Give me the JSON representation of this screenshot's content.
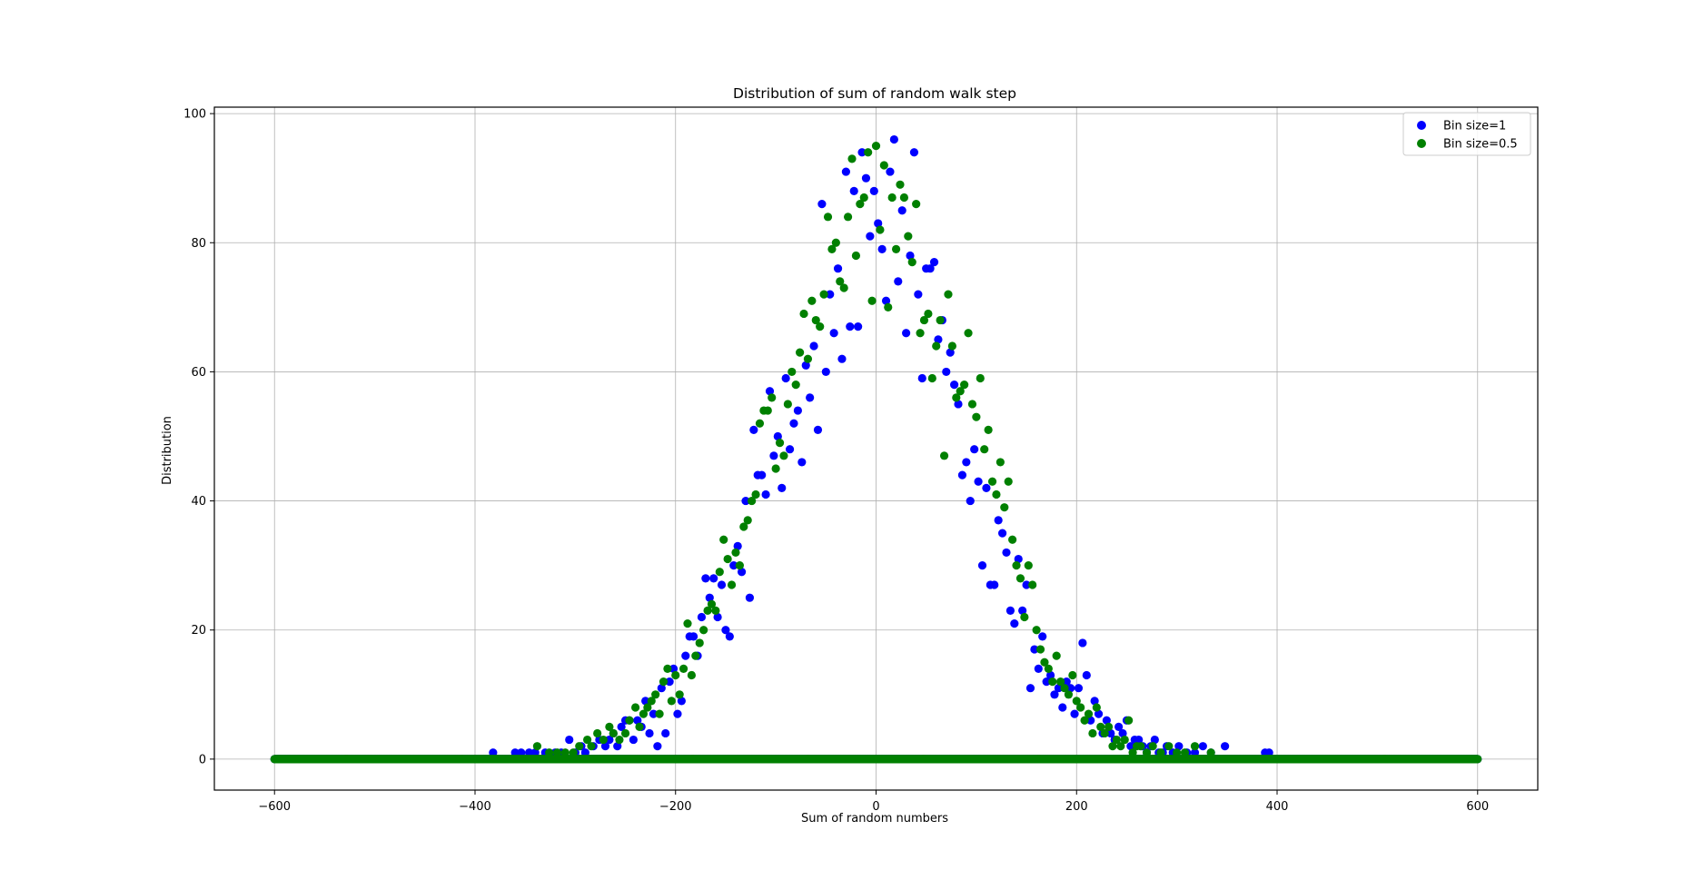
{
  "chart_data": {
    "type": "scatter",
    "title": "Distribution of sum of random walk step",
    "xlabel": "Sum of random numbers",
    "ylabel": "Distribution",
    "xlim": [
      -660,
      660
    ],
    "ylim": [
      -4.8,
      101
    ],
    "xticks": [
      -600,
      -400,
      -200,
      0,
      200,
      400,
      600
    ],
    "yticks": [
      0,
      20,
      40,
      60,
      80,
      100
    ],
    "grid": true,
    "legend_position": "top-right",
    "series": [
      {
        "name": "Bin size=1",
        "color": "#0000ff",
        "zero_baseline_range": [
          -600,
          600
        ],
        "points": [
          [
            -382,
            1
          ],
          [
            -360,
            1
          ],
          [
            -354,
            1
          ],
          [
            -346,
            1
          ],
          [
            -340,
            1
          ],
          [
            -330,
            1
          ],
          [
            -320,
            1
          ],
          [
            -314,
            1
          ],
          [
            -306,
            3
          ],
          [
            -300,
            1
          ],
          [
            -294,
            2
          ],
          [
            -290,
            1
          ],
          [
            -282,
            2
          ],
          [
            -276,
            3
          ],
          [
            -270,
            2
          ],
          [
            -266,
            3
          ],
          [
            -262,
            4
          ],
          [
            -258,
            2
          ],
          [
            -254,
            5
          ],
          [
            -250,
            6
          ],
          [
            -246,
            6
          ],
          [
            -242,
            3
          ],
          [
            -238,
            6
          ],
          [
            -234,
            5
          ],
          [
            -230,
            9
          ],
          [
            -226,
            4
          ],
          [
            -222,
            7
          ],
          [
            -218,
            2
          ],
          [
            -214,
            11
          ],
          [
            -210,
            4
          ],
          [
            -206,
            12
          ],
          [
            -202,
            14
          ],
          [
            -198,
            7
          ],
          [
            -194,
            9
          ],
          [
            -190,
            16
          ],
          [
            -186,
            19
          ],
          [
            -182,
            19
          ],
          [
            -178,
            16
          ],
          [
            -174,
            22
          ],
          [
            -170,
            28
          ],
          [
            -166,
            25
          ],
          [
            -162,
            28
          ],
          [
            -158,
            22
          ],
          [
            -154,
            27
          ],
          [
            -150,
            20
          ],
          [
            -146,
            19
          ],
          [
            -142,
            30
          ],
          [
            -138,
            33
          ],
          [
            -134,
            29
          ],
          [
            -130,
            40
          ],
          [
            -126,
            25
          ],
          [
            -122,
            51
          ],
          [
            -118,
            44
          ],
          [
            -114,
            44
          ],
          [
            -110,
            41
          ],
          [
            -106,
            57
          ],
          [
            -102,
            47
          ],
          [
            -98,
            50
          ],
          [
            -94,
            42
          ],
          [
            -90,
            59
          ],
          [
            -86,
            48
          ],
          [
            -82,
            52
          ],
          [
            -78,
            54
          ],
          [
            -74,
            46
          ],
          [
            -70,
            61
          ],
          [
            -66,
            56
          ],
          [
            -62,
            64
          ],
          [
            -58,
            51
          ],
          [
            -54,
            86
          ],
          [
            -50,
            60
          ],
          [
            -46,
            72
          ],
          [
            -42,
            66
          ],
          [
            -38,
            76
          ],
          [
            -34,
            62
          ],
          [
            -30,
            91
          ],
          [
            -26,
            67
          ],
          [
            -22,
            88
          ],
          [
            -18,
            67
          ],
          [
            -14,
            94
          ],
          [
            -10,
            90
          ],
          [
            -6,
            81
          ],
          [
            -2,
            88
          ],
          [
            2,
            83
          ],
          [
            6,
            79
          ],
          [
            10,
            71
          ],
          [
            14,
            91
          ],
          [
            18,
            96
          ],
          [
            22,
            74
          ],
          [
            26,
            85
          ],
          [
            30,
            66
          ],
          [
            34,
            78
          ],
          [
            38,
            94
          ],
          [
            42,
            72
          ],
          [
            46,
            59
          ],
          [
            50,
            76
          ],
          [
            54,
            76
          ],
          [
            58,
            77
          ],
          [
            62,
            65
          ],
          [
            66,
            68
          ],
          [
            70,
            60
          ],
          [
            74,
            63
          ],
          [
            78,
            58
          ],
          [
            82,
            55
          ],
          [
            86,
            44
          ],
          [
            90,
            46
          ],
          [
            94,
            40
          ],
          [
            98,
            48
          ],
          [
            102,
            43
          ],
          [
            106,
            30
          ],
          [
            110,
            42
          ],
          [
            114,
            27
          ],
          [
            118,
            27
          ],
          [
            122,
            37
          ],
          [
            126,
            35
          ],
          [
            130,
            32
          ],
          [
            134,
            23
          ],
          [
            138,
            21
          ],
          [
            142,
            31
          ],
          [
            146,
            23
          ],
          [
            150,
            27
          ],
          [
            154,
            11
          ],
          [
            158,
            17
          ],
          [
            162,
            14
          ],
          [
            166,
            19
          ],
          [
            170,
            12
          ],
          [
            174,
            13
          ],
          [
            178,
            10
          ],
          [
            182,
            11
          ],
          [
            186,
            8
          ],
          [
            190,
            12
          ],
          [
            194,
            11
          ],
          [
            198,
            7
          ],
          [
            202,
            11
          ],
          [
            206,
            18
          ],
          [
            210,
            13
          ],
          [
            214,
            6
          ],
          [
            218,
            9
          ],
          [
            222,
            7
          ],
          [
            226,
            4
          ],
          [
            230,
            6
          ],
          [
            234,
            4
          ],
          [
            238,
            3
          ],
          [
            242,
            5
          ],
          [
            246,
            4
          ],
          [
            250,
            6
          ],
          [
            254,
            2
          ],
          [
            258,
            3
          ],
          [
            262,
            3
          ],
          [
            266,
            2
          ],
          [
            270,
            1
          ],
          [
            274,
            2
          ],
          [
            278,
            3
          ],
          [
            282,
            1
          ],
          [
            286,
            1
          ],
          [
            290,
            2
          ],
          [
            296,
            1
          ],
          [
            302,
            2
          ],
          [
            310,
            1
          ],
          [
            318,
            1
          ],
          [
            326,
            2
          ],
          [
            334,
            1
          ],
          [
            348,
            2
          ],
          [
            388,
            1
          ],
          [
            392,
            1
          ]
        ]
      },
      {
        "name": "Bin size=0.5",
        "color": "#008000",
        "zero_baseline_range": [
          -600,
          600
        ],
        "points": [
          [
            -338,
            2
          ],
          [
            -326,
            1
          ],
          [
            -318,
            1
          ],
          [
            -310,
            1
          ],
          [
            -302,
            1
          ],
          [
            -296,
            2
          ],
          [
            -288,
            3
          ],
          [
            -284,
            2
          ],
          [
            -278,
            4
          ],
          [
            -272,
            3
          ],
          [
            -266,
            5
          ],
          [
            -262,
            4
          ],
          [
            -256,
            3
          ],
          [
            -250,
            4
          ],
          [
            -246,
            6
          ],
          [
            -240,
            8
          ],
          [
            -236,
            5
          ],
          [
            -232,
            7
          ],
          [
            -228,
            8
          ],
          [
            -224,
            9
          ],
          [
            -220,
            10
          ],
          [
            -216,
            7
          ],
          [
            -212,
            12
          ],
          [
            -208,
            14
          ],
          [
            -204,
            9
          ],
          [
            -200,
            13
          ],
          [
            -196,
            10
          ],
          [
            -192,
            14
          ],
          [
            -188,
            21
          ],
          [
            -184,
            13
          ],
          [
            -180,
            16
          ],
          [
            -176,
            18
          ],
          [
            -172,
            20
          ],
          [
            -168,
            23
          ],
          [
            -164,
            24
          ],
          [
            -160,
            23
          ],
          [
            -156,
            29
          ],
          [
            -152,
            34
          ],
          [
            -148,
            31
          ],
          [
            -144,
            27
          ],
          [
            -140,
            32
          ],
          [
            -136,
            30
          ],
          [
            -132,
            36
          ],
          [
            -128,
            37
          ],
          [
            -124,
            40
          ],
          [
            -120,
            41
          ],
          [
            -116,
            52
          ],
          [
            -112,
            54
          ],
          [
            -108,
            54
          ],
          [
            -104,
            56
          ],
          [
            -100,
            45
          ],
          [
            -96,
            49
          ],
          [
            -92,
            47
          ],
          [
            -88,
            55
          ],
          [
            -84,
            60
          ],
          [
            -80,
            58
          ],
          [
            -76,
            63
          ],
          [
            -72,
            69
          ],
          [
            -68,
            62
          ],
          [
            -64,
            71
          ],
          [
            -60,
            68
          ],
          [
            -56,
            67
          ],
          [
            -52,
            72
          ],
          [
            -48,
            84
          ],
          [
            -44,
            79
          ],
          [
            -40,
            80
          ],
          [
            -36,
            74
          ],
          [
            -32,
            73
          ],
          [
            -28,
            84
          ],
          [
            -24,
            93
          ],
          [
            -20,
            78
          ],
          [
            -16,
            86
          ],
          [
            -12,
            87
          ],
          [
            -8,
            94
          ],
          [
            -4,
            71
          ],
          [
            0,
            95
          ],
          [
            4,
            82
          ],
          [
            8,
            92
          ],
          [
            12,
            70
          ],
          [
            16,
            87
          ],
          [
            20,
            79
          ],
          [
            24,
            89
          ],
          [
            28,
            87
          ],
          [
            32,
            81
          ],
          [
            36,
            77
          ],
          [
            40,
            86
          ],
          [
            44,
            66
          ],
          [
            48,
            68
          ],
          [
            52,
            69
          ],
          [
            56,
            59
          ],
          [
            60,
            64
          ],
          [
            64,
            68
          ],
          [
            68,
            47
          ],
          [
            72,
            72
          ],
          [
            76,
            64
          ],
          [
            80,
            56
          ],
          [
            84,
            57
          ],
          [
            88,
            58
          ],
          [
            92,
            66
          ],
          [
            96,
            55
          ],
          [
            100,
            53
          ],
          [
            104,
            59
          ],
          [
            108,
            48
          ],
          [
            112,
            51
          ],
          [
            116,
            43
          ],
          [
            120,
            41
          ],
          [
            124,
            46
          ],
          [
            128,
            39
          ],
          [
            132,
            43
          ],
          [
            136,
            34
          ],
          [
            140,
            30
          ],
          [
            144,
            28
          ],
          [
            148,
            22
          ],
          [
            152,
            30
          ],
          [
            156,
            27
          ],
          [
            160,
            20
          ],
          [
            164,
            17
          ],
          [
            168,
            15
          ],
          [
            172,
            14
          ],
          [
            176,
            12
          ],
          [
            180,
            16
          ],
          [
            184,
            12
          ],
          [
            188,
            11
          ],
          [
            192,
            10
          ],
          [
            196,
            13
          ],
          [
            200,
            9
          ],
          [
            204,
            8
          ],
          [
            208,
            6
          ],
          [
            212,
            7
          ],
          [
            216,
            4
          ],
          [
            220,
            8
          ],
          [
            224,
            5
          ],
          [
            228,
            4
          ],
          [
            232,
            5
          ],
          [
            236,
            2
          ],
          [
            240,
            3
          ],
          [
            244,
            2
          ],
          [
            248,
            3
          ],
          [
            252,
            6
          ],
          [
            256,
            1
          ],
          [
            260,
            2
          ],
          [
            264,
            2
          ],
          [
            270,
            1
          ],
          [
            276,
            2
          ],
          [
            284,
            1
          ],
          [
            292,
            2
          ],
          [
            300,
            1
          ],
          [
            308,
            1
          ],
          [
            318,
            2
          ],
          [
            334,
            1
          ]
        ]
      }
    ]
  }
}
